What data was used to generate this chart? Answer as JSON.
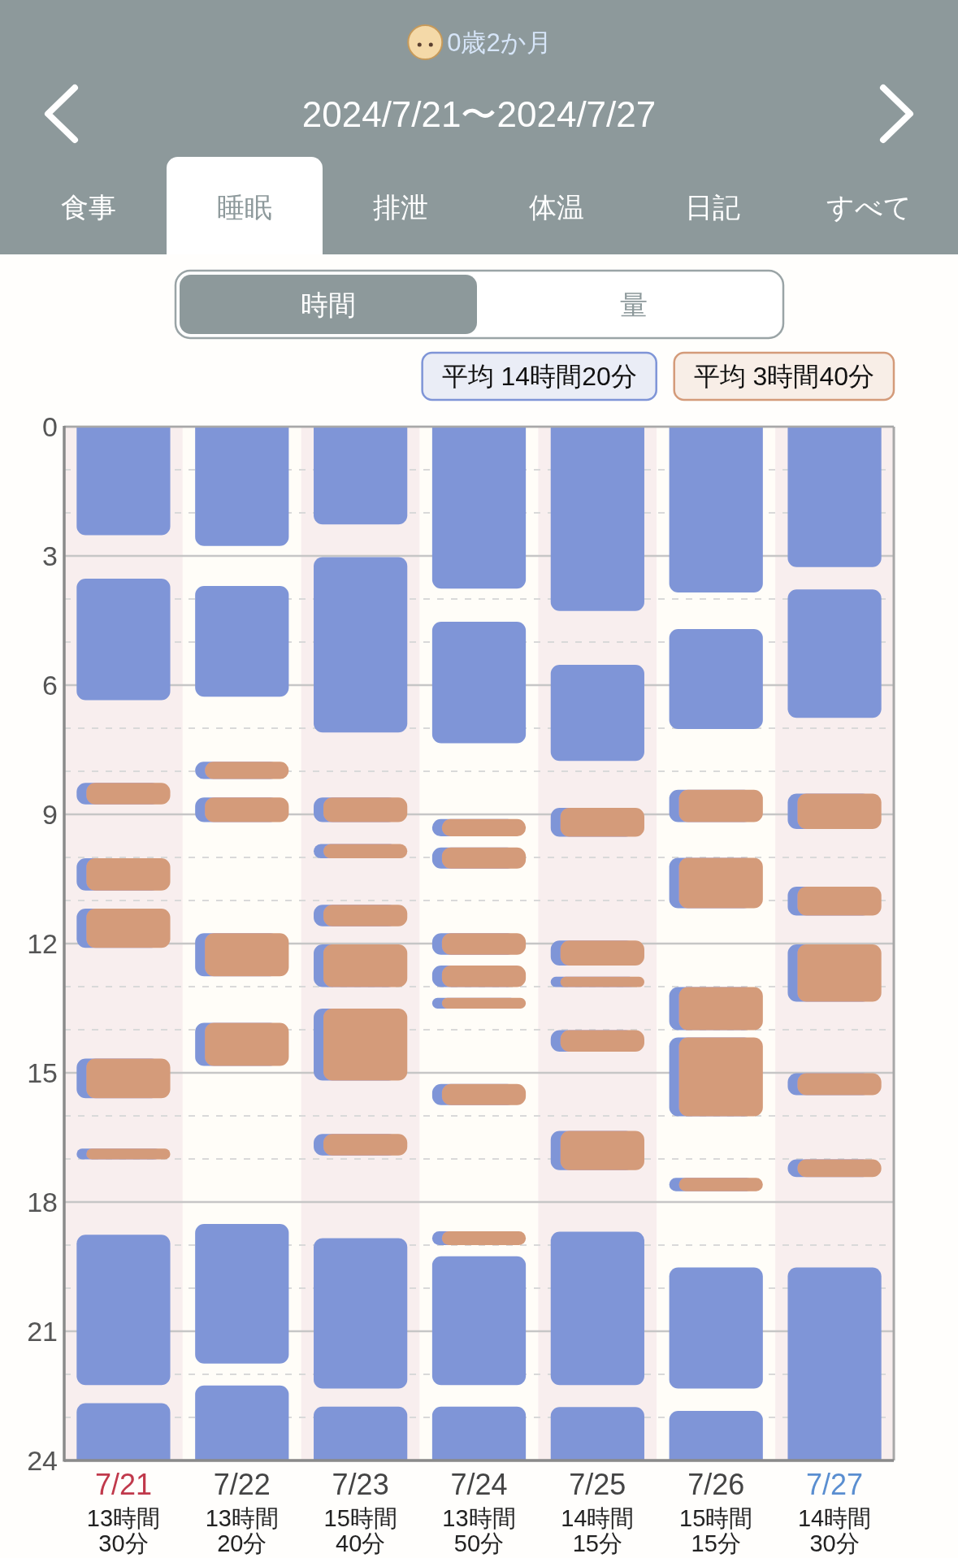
{
  "chart_data": {
    "type": "bar",
    "title": "0歳2か月",
    "subtitle": "2024/7/21〜2024/7/27",
    "annotations": [
      "食事",
      "睡眠",
      "排泄",
      "体温",
      "日記",
      "すべて",
      "時間",
      "量"
    ],
    "categories": [
      "7/21",
      "7/22",
      "7/23",
      "7/24",
      "7/25",
      "7/26",
      "7/27"
    ],
    "totals": [
      "13時間\n30分",
      "13時間\n20分",
      "15時間\n40分",
      "13時間\n50分",
      "14時間\n15分",
      "15時間\n15分",
      "14時間\n30分"
    ],
    "ylim": [
      24,
      0
    ],
    "yticks": [
      0,
      {
        "value": 1,
        "label": null
      },
      {
        "value": 2,
        "label": null
      },
      3,
      {
        "value": 4,
        "label": null
      },
      {
        "value": 5,
        "label": null
      },
      6,
      {
        "value": 7,
        "label": null
      },
      {
        "value": 8,
        "label": null
      },
      9,
      {
        "value": 10,
        "label": null
      },
      {
        "value": 11,
        "label": null
      },
      12,
      {
        "value": 13,
        "label": null
      },
      {
        "value": 14,
        "label": null
      },
      15,
      {
        "value": 16,
        "label": null
      },
      {
        "value": 17,
        "label": null
      },
      18,
      {
        "value": 19,
        "label": null
      },
      {
        "value": 20,
        "label": null
      },
      21,
      {
        "value": 22,
        "label": null
      },
      {
        "value": 23,
        "label": null
      },
      24
    ],
    "grid": true,
    "legend": "top right",
    "series": [
      {
        "name": "平均 14時間20分",
        "color": "#7f95d7",
        "base": [
          0,
          0,
          0,
          0,
          0,
          0,
          0
        ],
        "values": [
          2.52,
          2.77,
          2.27,
          3.76,
          4.28,
          3.85,
          3.26
        ]
      },
      {
        "color": "#7f95d7",
        "base": [
          3.53,
          3.7,
          3.03,
          4.53,
          5.53,
          4.7,
          3.78
        ],
        "values": [
          2.82,
          2.57,
          4.07,
          2.82,
          2.23,
          2.32,
          2.98
        ]
      },
      {
        "color": "#7f95d7",
        "base": [
          18.76,
          18.51,
          18.84,
          19.26,
          18.69,
          19.52,
          19.52
        ],
        "values": [
          3.49,
          3.24,
          3.49,
          2.99,
          3.56,
          2.81,
          4.48
        ]
      },
      {
        "color": "#7f95d7",
        "base": [
          22.67,
          22.26,
          22.75,
          22.75,
          22.76,
          22.85,
          null
        ],
        "values": [
          1.33,
          1.74,
          1.25,
          1.25,
          1.24,
          1.15,
          null
        ]
      },
      {
        "name": "平均 3時間40分",
        "color": "#d49b7a",
        "base": [
          8.27,
          7.78,
          8.61,
          9.11,
          8.85,
          8.43,
          8.52
        ],
        "values": [
          0.5,
          0.4,
          0.57,
          0.4,
          0.67,
          0.75,
          0.82
        ]
      },
      {
        "color": "#d49b7a",
        "base": [
          10.02,
          8.61,
          9.69,
          9.77,
          11.93,
          10.01,
          10.68
        ],
        "values": [
          0.75,
          0.57,
          0.33,
          0.49,
          0.58,
          1.17,
          0.67
        ]
      },
      {
        "color": "#d49b7a",
        "base": [
          11.19,
          11.76,
          11.1,
          11.76,
          12.77,
          13.01,
          12.02
        ],
        "values": [
          0.91,
          1.0,
          0.5,
          0.5,
          0.24,
          1.0,
          1.33
        ]
      },
      {
        "color": "#d49b7a",
        "base": [
          14.67,
          13.84,
          12.02,
          12.51,
          14.01,
          14.18,
          15.01
        ],
        "values": [
          0.92,
          1.0,
          0.99,
          0.5,
          0.5,
          1.83,
          0.51
        ]
      },
      {
        "color": "#d49b7a",
        "base": [
          16.76,
          null,
          13.51,
          13.26,
          16.35,
          17.44,
          17.01
        ],
        "values": [
          0.25,
          null,
          1.67,
          0.25,
          0.91,
          0.31,
          0.41
        ]
      },
      {
        "color": "#d49b7a",
        "base": [
          null,
          null,
          16.42,
          15.26,
          null,
          null,
          null
        ],
        "values": [
          null,
          null,
          0.5,
          0.49,
          null,
          null,
          null
        ]
      },
      {
        "color": "#d49b7a",
        "base": [
          null,
          null,
          null,
          18.68,
          null,
          null,
          null
        ],
        "values": [
          null,
          null,
          null,
          0.32,
          null,
          null,
          null
        ]
      }
    ]
  }
}
